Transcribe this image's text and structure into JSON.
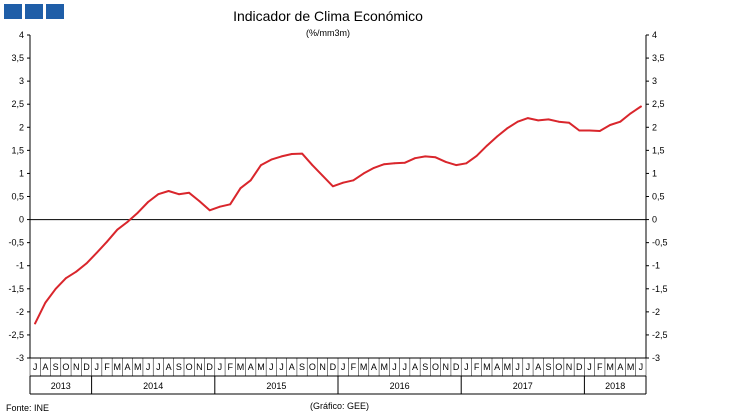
{
  "logo": {
    "icon": "ine-logo-icon",
    "color": "#1f5ea8"
  },
  "header": {
    "title": "Indicador de Clima Económico",
    "subtitle": "(%/mm3m)"
  },
  "footer": {
    "source": "Fonte: INE",
    "credit": "(Gráfico: GEE)"
  },
  "colors": {
    "series": "#d9262c",
    "axis": "#000000"
  },
  "chart_data": {
    "type": "line",
    "title": "Indicador de Clima Económico",
    "subtitle": "(%/mm3m)",
    "xlabel": "",
    "ylabel": "",
    "ylim": [
      -3,
      4
    ],
    "yticks": [
      "4",
      "3,5",
      "3",
      "2,5",
      "2",
      "1,5",
      "1",
      "0,5",
      "0",
      "-0,5",
      "-1",
      "-1,5",
      "-2",
      "-2,5",
      "-3"
    ],
    "grid": false,
    "legend": "none",
    "month_labels": [
      "J",
      "A",
      "S",
      "O",
      "N",
      "D",
      "J",
      "F",
      "M",
      "A",
      "M",
      "J",
      "J",
      "A",
      "S",
      "O",
      "N",
      "D",
      "J",
      "F",
      "M",
      "A",
      "M",
      "J",
      "J",
      "A",
      "S",
      "O",
      "N",
      "D",
      "J",
      "F",
      "M",
      "A",
      "M",
      "J",
      "J",
      "A",
      "S",
      "O",
      "N",
      "D",
      "J",
      "F",
      "M",
      "A",
      "M",
      "J",
      "J",
      "A",
      "S",
      "O",
      "N",
      "D",
      "J",
      "F",
      "M",
      "A",
      "M",
      "J"
    ],
    "year_labels": [
      {
        "label": "2013",
        "start": 0,
        "count": 6
      },
      {
        "label": "2014",
        "start": 6,
        "count": 12
      },
      {
        "label": "2015",
        "start": 18,
        "count": 12
      },
      {
        "label": "2016",
        "start": 30,
        "count": 12
      },
      {
        "label": "2017",
        "start": 42,
        "count": 12
      },
      {
        "label": "2018",
        "start": 54,
        "count": 6
      }
    ],
    "series": [
      {
        "values": [
          -2.25,
          -1.8,
          -1.5,
          -1.27,
          -1.13,
          -0.95,
          -0.72,
          -0.48,
          -0.22,
          -0.05,
          0.15,
          0.38,
          0.55,
          0.62,
          0.55,
          0.58,
          0.4,
          0.2,
          0.28,
          0.33,
          0.68,
          0.85,
          1.18,
          1.3,
          1.37,
          1.42,
          1.43,
          1.18,
          0.95,
          0.72,
          0.8,
          0.85,
          1.0,
          1.12,
          1.2,
          1.22,
          1.23,
          1.33,
          1.37,
          1.35,
          1.25,
          1.18,
          1.22,
          1.38,
          1.6,
          1.8,
          1.98,
          2.12,
          2.2,
          2.15,
          2.17,
          2.12,
          2.1,
          1.93,
          1.93,
          1.92,
          2.05,
          2.12,
          2.3,
          2.45
        ]
      }
    ]
  }
}
